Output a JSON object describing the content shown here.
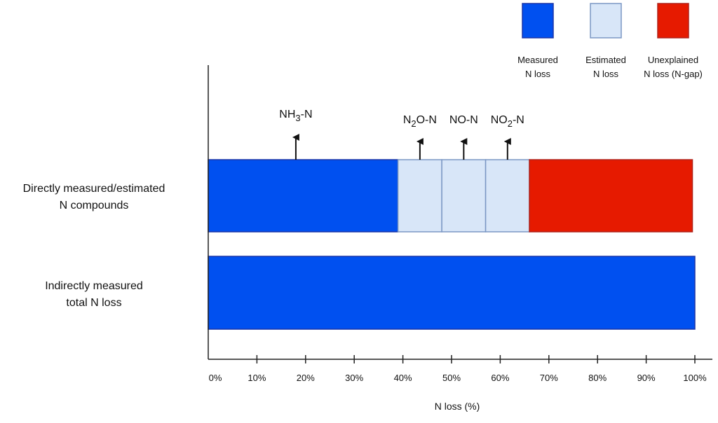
{
  "chart_data": {
    "type": "bar",
    "orientation": "horizontal",
    "stacked": true,
    "title": "",
    "xlabel": "N loss (%)",
    "ylabel": "",
    "xlim": [
      0,
      100
    ],
    "x_ticks": [
      "0%",
      "10%",
      "20%",
      "30%",
      "40%",
      "50%",
      "60%",
      "70%",
      "80%",
      "90%",
      "100%"
    ],
    "grid": false,
    "legend_position": "top-right",
    "categories": [
      {
        "line1": "Directly measured/estimated",
        "line2": "N compounds"
      },
      {
        "line1": "Indirectly measured",
        "line2": "total N loss"
      }
    ],
    "legend": [
      {
        "key": "measured",
        "line1": "Measured",
        "line2": "N loss",
        "fill": "#0050f0",
        "stroke": "#1a35a8"
      },
      {
        "key": "estimated",
        "line1": "Estimated",
        "line2": "N loss",
        "fill": "#d8e6f8",
        "stroke": "#7b97c4"
      },
      {
        "key": "gap",
        "line1": "Unexplained",
        "line2": "N loss (N-gap)",
        "fill": "#e61a00",
        "stroke": "#b0221a"
      }
    ],
    "bars": [
      {
        "category_index": 0,
        "segments": [
          {
            "start": 0,
            "end": 39,
            "type": "measured",
            "annotation": {
              "base": "NH",
              "sub": "3",
              "rest": "-N"
            }
          },
          {
            "start": 39,
            "end": 48,
            "type": "estimated",
            "annotation": {
              "base": "N",
              "sub": "2",
              "rest": "O-N"
            }
          },
          {
            "start": 48,
            "end": 57,
            "type": "estimated",
            "annotation": {
              "base": "NO-N",
              "sub": "",
              "rest": ""
            }
          },
          {
            "start": 57,
            "end": 66,
            "type": "estimated",
            "annotation": {
              "base": "NO",
              "sub": "2",
              "rest": "-N"
            }
          },
          {
            "start": 66,
            "end": 99.5,
            "type": "gap",
            "annotation": null
          }
        ]
      },
      {
        "category_index": 1,
        "segments": [
          {
            "start": 0,
            "end": 100,
            "type": "measured",
            "annotation": null
          }
        ]
      }
    ]
  }
}
